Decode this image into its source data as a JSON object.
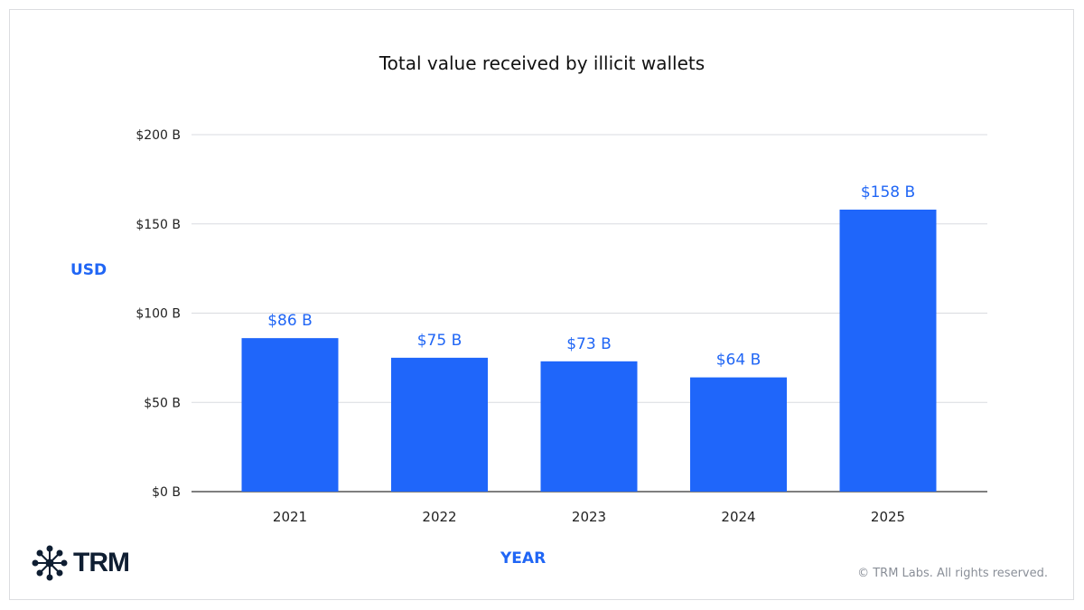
{
  "chart_data": {
    "type": "bar",
    "title": "Total value received by illicit wallets",
    "xlabel": "YEAR",
    "ylabel": "USD",
    "categories": [
      "2021",
      "2022",
      "2023",
      "2024",
      "2025"
    ],
    "values": [
      86,
      75,
      73,
      64,
      158
    ],
    "data_labels": [
      "$86 B",
      "$75 B",
      "$73 B",
      "$64 B",
      "$158 B"
    ],
    "ylim": [
      0,
      200
    ],
    "yticks": [
      0,
      50,
      100,
      150,
      200
    ],
    "ytick_labels": [
      "$0 B",
      "$50 B",
      "$100 B",
      "$150 B",
      "$200 B"
    ],
    "grid": true,
    "bar_color": "#1f66fa",
    "label_color": "#2066f5"
  },
  "footer": {
    "copyright": "© TRM Labs. All rights reserved.",
    "logo": "TRM"
  }
}
